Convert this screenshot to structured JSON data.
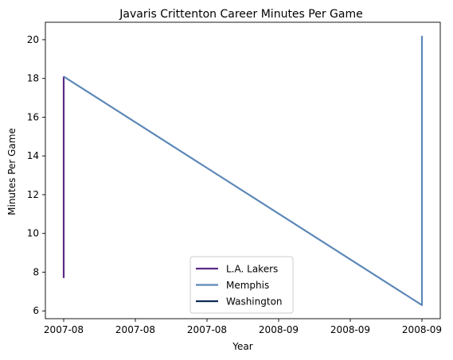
{
  "chart_data": {
    "type": "line",
    "title": "Javaris Crittenton Career Minutes Per Game",
    "xlabel": "Year",
    "ylabel": "Minutes Per Game",
    "xlim": [
      0,
      1
    ],
    "ylim": [
      5.6,
      20.9
    ],
    "x_ticks": [
      {
        "pos": 0.0,
        "label": "2007-08"
      },
      {
        "pos": 0.2,
        "label": "2007-08"
      },
      {
        "pos": 0.4,
        "label": "2007-08"
      },
      {
        "pos": 0.6,
        "label": "2008-09"
      },
      {
        "pos": 0.8,
        "label": "2008-09"
      },
      {
        "pos": 1.0,
        "label": "2008-09"
      }
    ],
    "y_ticks": [
      6,
      8,
      10,
      12,
      14,
      16,
      18,
      20
    ],
    "legend_position": "lower-center",
    "series": [
      {
        "name": "L.A. Lakers",
        "color": "#5b2a86",
        "points": [
          [
            0,
            7.7
          ],
          [
            0,
            18.1
          ]
        ]
      },
      {
        "name": "Memphis",
        "color": "#5d88b8",
        "points": [
          [
            0,
            18.1
          ],
          [
            1,
            6.3
          ],
          [
            1,
            20.2
          ]
        ]
      },
      {
        "name": "Washington",
        "color": "#0c2c56",
        "points": [
          [
            1,
            6.3
          ],
          [
            1,
            6.3
          ]
        ]
      }
    ]
  }
}
